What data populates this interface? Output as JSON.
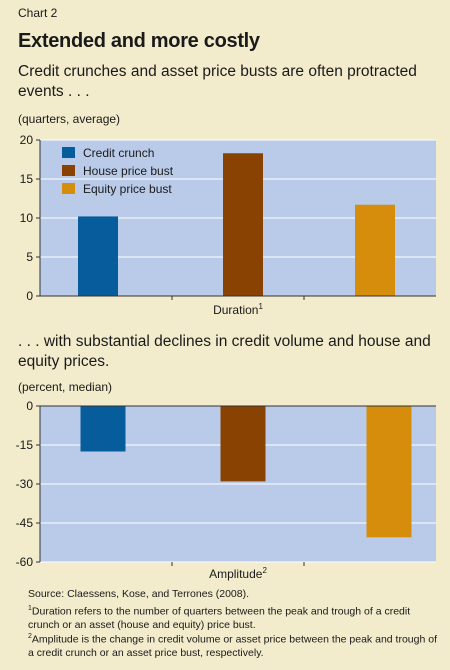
{
  "header": {
    "chart_number": "Chart 2",
    "title": "Extended and more costly"
  },
  "colors": {
    "plot_bg": "#b9cbe8",
    "credit": "#075d9b",
    "house": "#8a4203",
    "equity": "#d58d0b",
    "grid": "#ffffff"
  },
  "chart_data": [
    {
      "type": "bar",
      "subtitle": "Credit crunches and asset price busts are often protracted events . . .",
      "unit_label": "(quarters, average)",
      "xlabel": "Duration",
      "xlabel_note": "1",
      "categories": [
        "Credit crunch",
        "House price bust",
        "Equity price bust"
      ],
      "values": [
        10.2,
        18.3,
        11.7
      ],
      "ylim": [
        0,
        20
      ],
      "yticks": [
        0,
        5,
        10,
        15,
        20
      ],
      "grid": true,
      "legend": {
        "placement": "top-left",
        "entries": [
          "Credit crunch",
          "House price bust",
          "Equity price bust"
        ]
      }
    },
    {
      "type": "bar",
      "subtitle": ". . . with substantial declines in credit volume and house and equity prices.",
      "unit_label": "(percent, median)",
      "xlabel": "Amplitude",
      "xlabel_note": "2",
      "categories": [
        "Credit crunch",
        "House price bust",
        "Equity price bust"
      ],
      "values": [
        -17.5,
        -29,
        -50.5
      ],
      "ylim": [
        -60,
        0
      ],
      "yticks": [
        0,
        -15,
        -30,
        -45,
        -60
      ],
      "grid": true
    }
  ],
  "footer": {
    "source": "Source: Claessens, Kose, and Terrones (2008).",
    "notes": [
      {
        "mark": "1",
        "text": "Duration refers to the number of quarters between the peak and trough of a credit crunch or an asset (house and equity) price bust."
      },
      {
        "mark": "2",
        "text": "Amplitude is the change in credit volume or asset price between the peak and trough of a credit crunch or an asset price bust, respectively."
      }
    ]
  }
}
